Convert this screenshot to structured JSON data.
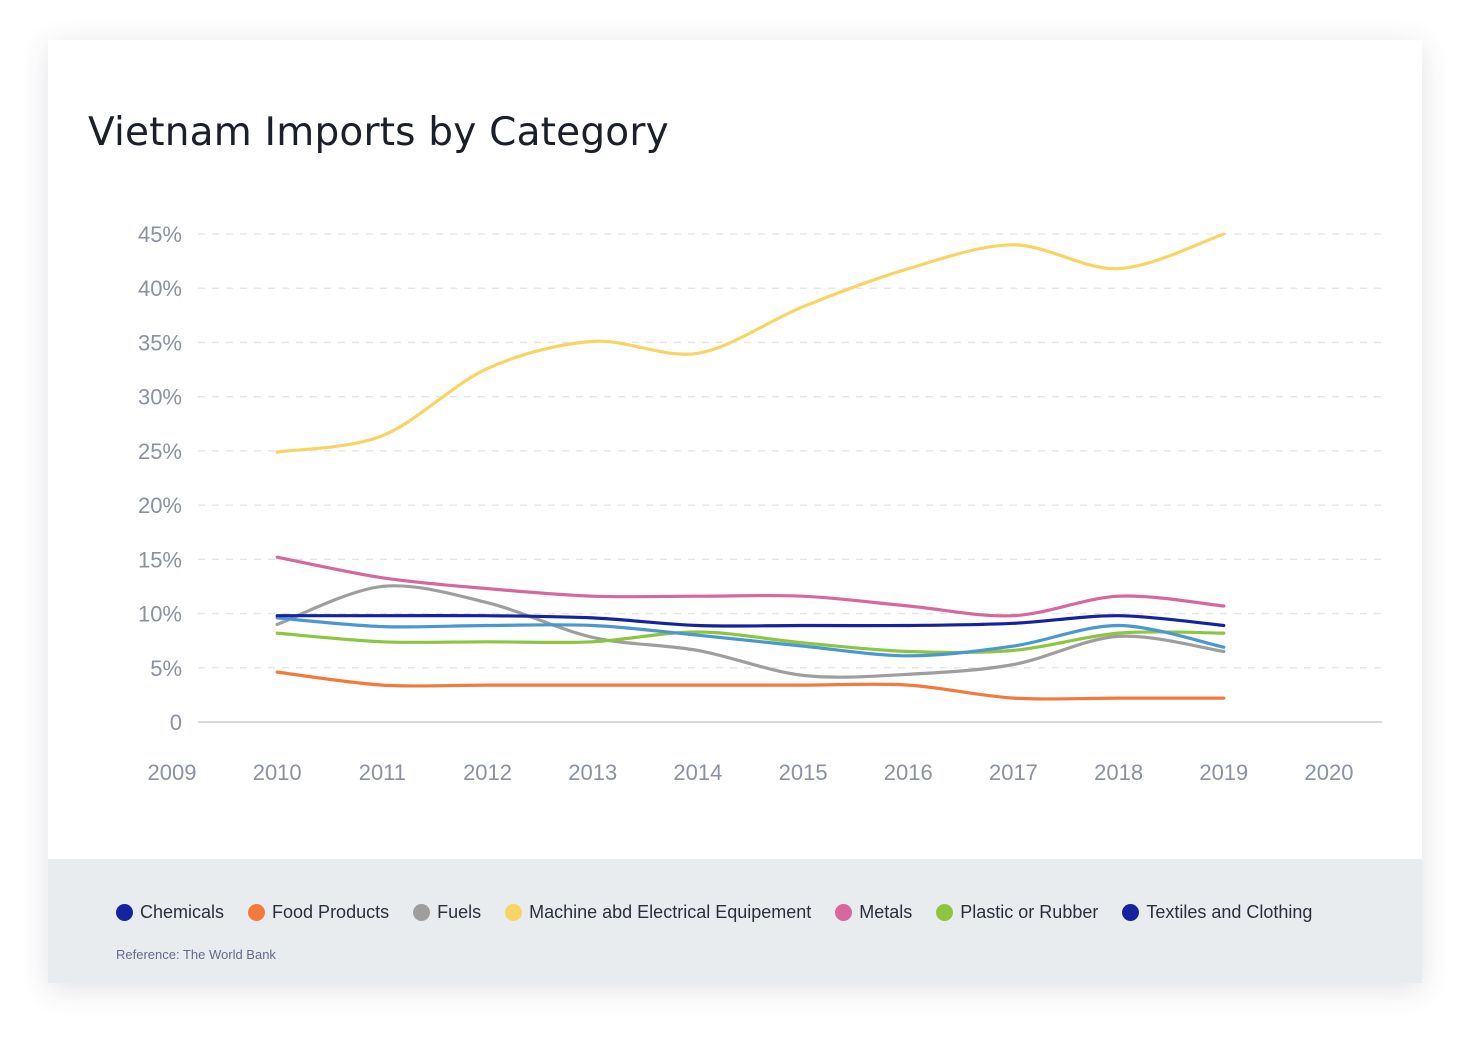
{
  "chart_data": {
    "type": "line",
    "title": "Vietnam Imports by Category",
    "x_ticks": [
      "2009",
      "2010",
      "2011",
      "2012",
      "2013",
      "2014",
      "2015",
      "2016",
      "2017",
      "2018",
      "2019",
      "2020"
    ],
    "x": [
      2010,
      2011,
      2012,
      2013,
      2014,
      2015,
      2016,
      2017,
      2018,
      2019
    ],
    "xlim": [
      2009,
      2020
    ],
    "y_ticks": [
      "0",
      "5%",
      "10%",
      "15%",
      "20%",
      "25%",
      "30%",
      "35%",
      "40%",
      "45%"
    ],
    "ylim": [
      0,
      45
    ],
    "grid": true,
    "legend_position": "bottom",
    "series": [
      {
        "name": "Chemicals",
        "color": "#1f2fa3",
        "values": [
          9.8,
          9.8,
          9.8,
          9.6,
          8.9,
          8.9,
          8.9,
          9.1,
          9.8,
          8.9
        ]
      },
      {
        "name": "Food Products",
        "color": "#f47a3c",
        "values": [
          4.6,
          3.4,
          3.4,
          3.4,
          3.4,
          3.4,
          3.4,
          2.2,
          2.2,
          2.2
        ]
      },
      {
        "name": "Fuels",
        "color": "#9e9e9e",
        "values": [
          9.0,
          12.5,
          11.0,
          7.8,
          6.6,
          4.3,
          4.4,
          5.3,
          7.9,
          6.5
        ]
      },
      {
        "name": "Machine abd Electrical Equipement",
        "color": "#f9d465",
        "values": [
          24.9,
          26.4,
          32.6,
          35.1,
          34.0,
          38.3,
          41.8,
          44.0,
          41.8,
          45.0
        ]
      },
      {
        "name": "Metals",
        "color": "#d7679c",
        "values": [
          15.2,
          13.3,
          12.3,
          11.6,
          11.6,
          11.6,
          10.7,
          9.8,
          11.6,
          10.7
        ]
      },
      {
        "name": "Plastic or Rubber",
        "color": "#8cc63f",
        "values": [
          8.2,
          7.4,
          7.4,
          7.4,
          8.3,
          7.3,
          6.5,
          6.6,
          8.2,
          8.2
        ]
      },
      {
        "name": "Textiles and Clothing",
        "color": "#1523a0",
        "values": [
          9.6,
          8.8,
          8.9,
          8.9,
          8.0,
          7.0,
          6.1,
          7.0,
          8.9,
          6.9
        ]
      }
    ]
  },
  "line_colors": [
    "#1523a0",
    "#f47a3c",
    "#9e9e9e",
    "#f9d465",
    "#d7679c",
    "#8cc63f",
    "#4a97d4"
  ],
  "legend": [
    {
      "label": "Chemicals",
      "color": "#1523a0"
    },
    {
      "label": "Food Products",
      "color": "#f47a3c"
    },
    {
      "label": "Fuels",
      "color": "#9e9e9e"
    },
    {
      "label": "Machine abd Electrical Equipement",
      "color": "#f9d465"
    },
    {
      "label": "Metals",
      "color": "#d7679c"
    },
    {
      "label": "Plastic or Rubber",
      "color": "#8cc63f"
    },
    {
      "label": "Textiles and Clothing",
      "color": "#1523a0"
    }
  ],
  "reference": "Reference: The World Bank"
}
